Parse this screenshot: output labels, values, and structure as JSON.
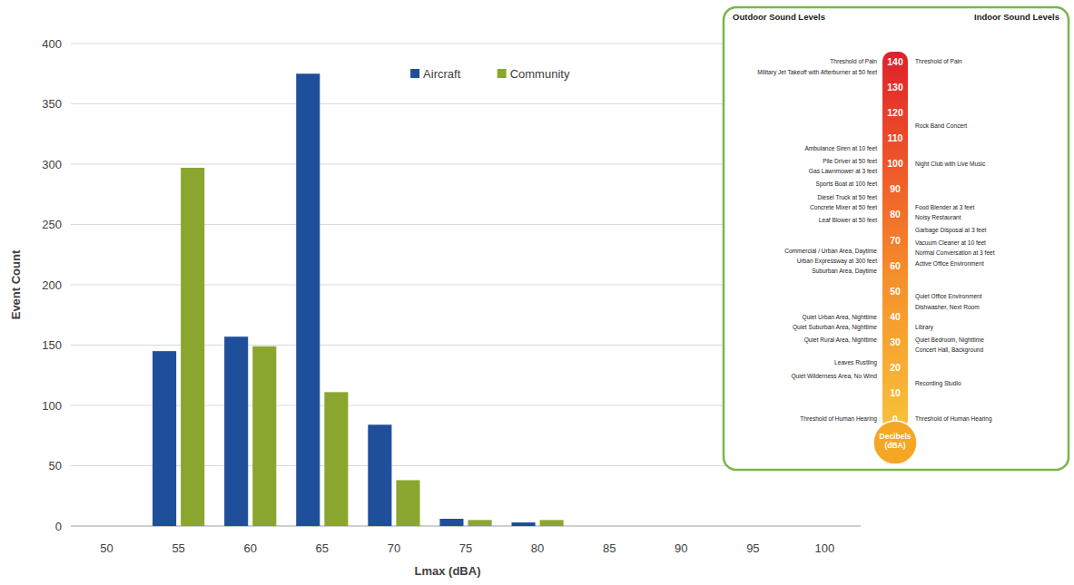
{
  "chart_data": {
    "type": "bar",
    "x_label": "Lmax (dBA)",
    "y_label": "Event Count",
    "categories": [
      "50",
      "55",
      "60",
      "65",
      "70",
      "75",
      "80",
      "85",
      "90",
      "95",
      "100"
    ],
    "series": [
      {
        "name": "Aircraft",
        "color": "#1f4e9b",
        "values": [
          0,
          145,
          157,
          375,
          84,
          6,
          3,
          0,
          0,
          0,
          0
        ]
      },
      {
        "name": "Community",
        "color": "#8ba62e",
        "values": [
          0,
          297,
          149,
          111,
          38,
          5,
          5,
          0,
          0,
          0,
          0
        ]
      }
    ],
    "ylim": [
      0,
      400
    ],
    "yticks": [
      0,
      50,
      100,
      150,
      200,
      250,
      300,
      350,
      400
    ],
    "grid": true,
    "legend": "top"
  },
  "sound_scale": {
    "outdoor_title": "Outdoor Sound Levels",
    "indoor_title": "Indoor Sound Levels",
    "ticks": [
      0,
      10,
      20,
      30,
      40,
      50,
      60,
      70,
      80,
      90,
      100,
      110,
      120,
      130,
      140
    ],
    "unit_label": [
      "Decibels",
      "(dBA)"
    ],
    "outdoor": [
      {
        "text": "Threshold of Pain",
        "db": 140
      },
      {
        "text": "Military Jet Takeoff with Afterburner at 50 feet",
        "db": 136
      },
      {
        "text": "Ambulance Siren at 10 feet",
        "db": 106
      },
      {
        "text": "Pile Driver at 50 feet",
        "db": 101
      },
      {
        "text": "Gas Lawnmower at 3 feet",
        "db": 97
      },
      {
        "text": "Sports Boat at 100 feet",
        "db": 92
      },
      {
        "text": "Diesel Truck at 50 feet",
        "db": 87
      },
      {
        "text": "Concrete Mixer at 50 feet",
        "db": 83
      },
      {
        "text": "Leaf Blower at 50 feet",
        "db": 78
      },
      {
        "text": "Commercial / Urban Area, Daytime",
        "db": 66
      },
      {
        "text": "Urban Expressway at 300 feet",
        "db": 62
      },
      {
        "text": "Suburban Area, Daytime",
        "db": 58
      },
      {
        "text": "Quiet Urban Area, Nighttime",
        "db": 40
      },
      {
        "text": "Quiet Suburban Area, Nighttime",
        "db": 36
      },
      {
        "text": "Quiet Rural Area, Nighttime",
        "db": 31
      },
      {
        "text": "Leaves Rustling",
        "db": 22
      },
      {
        "text": "Quiet Wilderness Area, No Wind",
        "db": 17
      },
      {
        "text": "Threshold of Human Hearing",
        "db": 0
      }
    ],
    "indoor": [
      {
        "text": "Threshold of Pain",
        "db": 140
      },
      {
        "text": "Rock Band Concert",
        "db": 115
      },
      {
        "text": "Night Club with Live Music",
        "db": 100
      },
      {
        "text": "Food Blender at 3 feet",
        "db": 83
      },
      {
        "text": "Noisy Restaurant",
        "db": 79
      },
      {
        "text": "Garbage Disposal at 3 feet",
        "db": 74
      },
      {
        "text": "Vacuum Cleaner at 10 feet",
        "db": 69
      },
      {
        "text": "Normal Conversation at 3 feet",
        "db": 65
      },
      {
        "text": "Active Office Environment",
        "db": 61
      },
      {
        "text": "Quiet Office Environment",
        "db": 48
      },
      {
        "text": "Dishwasher, Next Room",
        "db": 44
      },
      {
        "text": "Library",
        "db": 36
      },
      {
        "text": "Quiet Bedroom, Nighttime",
        "db": 31
      },
      {
        "text": "Concert Hall, Background",
        "db": 27
      },
      {
        "text": "Recording Studio",
        "db": 14
      },
      {
        "text": "Threshold of Human Hearing",
        "db": 0
      }
    ]
  }
}
